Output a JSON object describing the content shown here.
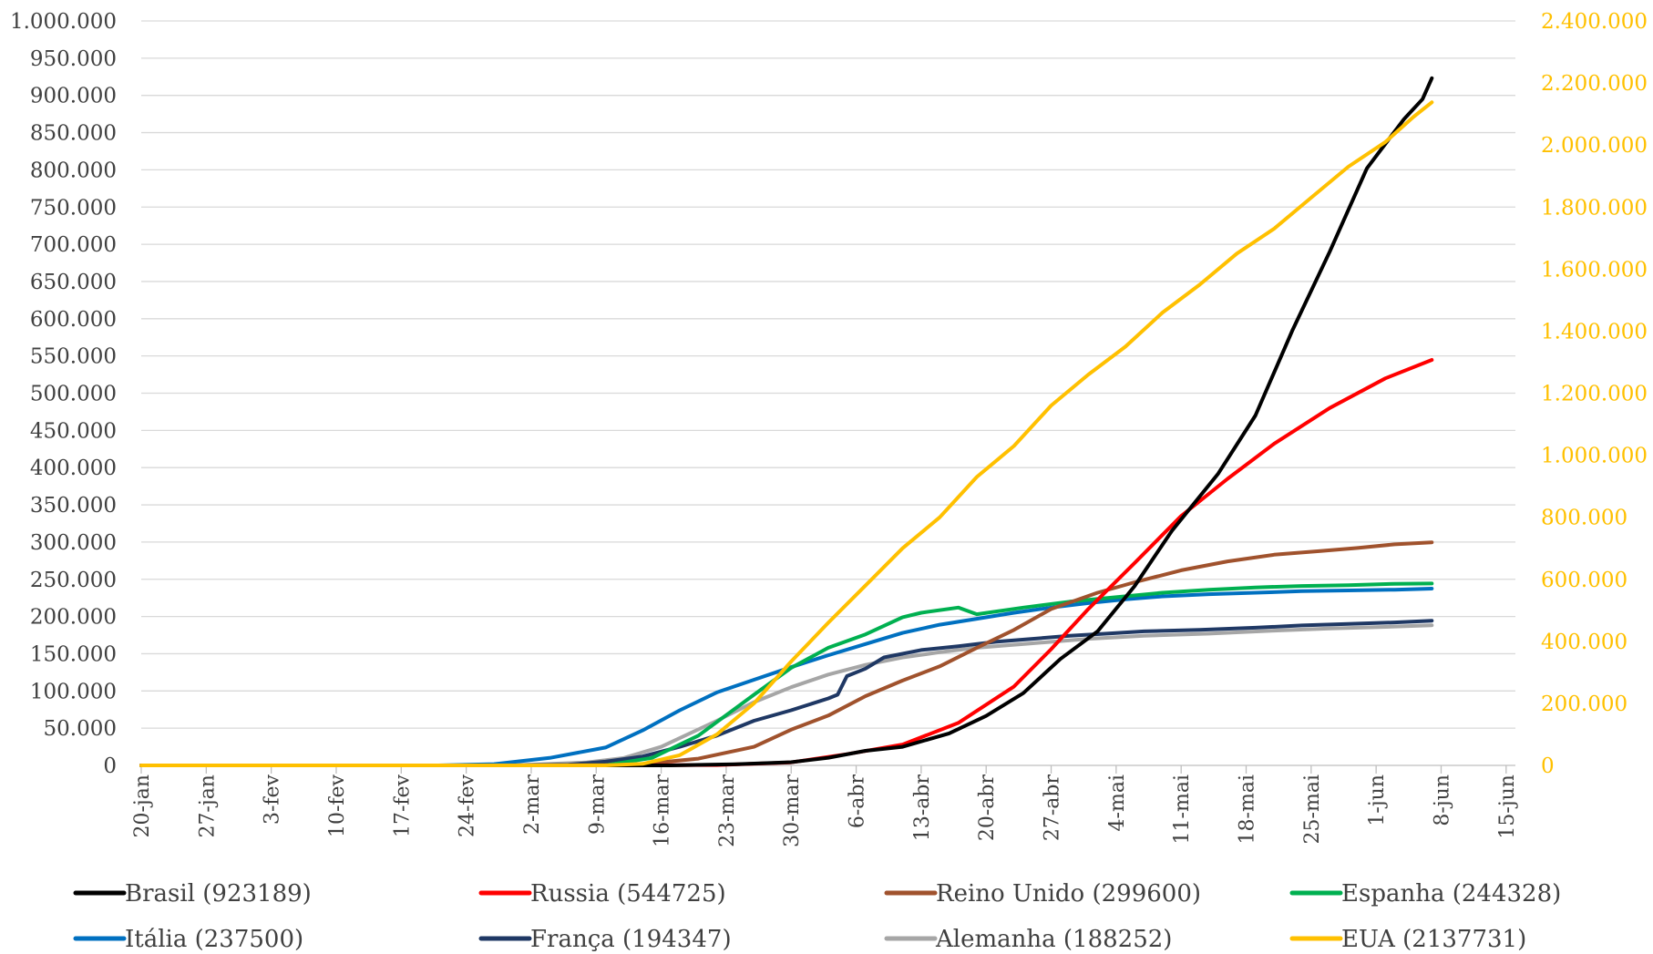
{
  "chart_data": {
    "type": "line",
    "title": "",
    "xlabel": "",
    "ylabel": "",
    "y_left": {
      "ylim": [
        0,
        1000000
      ],
      "step": 50000,
      "tick_labels": [
        "0",
        "50.000",
        "100.000",
        "150.000",
        "200.000",
        "250.000",
        "300.000",
        "350.000",
        "400.000",
        "450.000",
        "500.000",
        "550.000",
        "600.000",
        "650.000",
        "700.000",
        "750.000",
        "800.000",
        "850.000",
        "900.000",
        "950.000",
        "1.000.000"
      ]
    },
    "y_right": {
      "ylim": [
        0,
        2400000
      ],
      "step": 200000,
      "color": "#ffc000",
      "tick_labels": [
        "0",
        "200.000",
        "400.000",
        "600.000",
        "800.000",
        "1.000.000",
        "1.200.000",
        "1.400.000",
        "1.600.000",
        "1.800.000",
        "2.000.000",
        "2.200.000",
        "2.400.000"
      ]
    },
    "x_ticks": [
      "20-jan",
      "27-jan",
      "3-fev",
      "10-fev",
      "17-fev",
      "24-fev",
      "2-mar",
      "9-mar",
      "16-mar",
      "23-mar",
      "30-mar",
      "6-abr",
      "13-abr",
      "20-abr",
      "27-abr",
      "4-mai",
      "11-mai",
      "18-mai",
      "25-mai",
      "1-jun",
      "8-jun",
      "15-jun"
    ],
    "x_range_days": [
      0,
      148
    ],
    "grid": true,
    "legend_position": "bottom",
    "series": [
      {
        "name": "Brasil (923189)",
        "color": "#000000",
        "axis": "left",
        "points": [
          [
            0,
            0
          ],
          [
            36,
            0
          ],
          [
            45,
            1
          ],
          [
            57,
            30
          ],
          [
            64,
            1500
          ],
          [
            70,
            4300
          ],
          [
            74,
            10300
          ],
          [
            78,
            19600
          ],
          [
            82,
            25000
          ],
          [
            87,
            43000
          ],
          [
            91,
            66500
          ],
          [
            95,
            97100
          ],
          [
            99,
            143000
          ],
          [
            103,
            180000
          ],
          [
            107,
            241000
          ],
          [
            111,
            315000
          ],
          [
            116,
            392000
          ],
          [
            120,
            470000
          ],
          [
            124,
            585000
          ],
          [
            128,
            690000
          ],
          [
            132,
            802000
          ],
          [
            136,
            868000
          ],
          [
            138,
            895000
          ],
          [
            139,
            923189
          ]
        ]
      },
      {
        "name": "Russia (544725)",
        "color": "#ff0000",
        "axis": "left",
        "points": [
          [
            0,
            0
          ],
          [
            50,
            0
          ],
          [
            62,
            500
          ],
          [
            70,
            4000
          ],
          [
            76,
            15000
          ],
          [
            82,
            28000
          ],
          [
            88,
            57000
          ],
          [
            94,
            106000
          ],
          [
            98,
            156000
          ],
          [
            102,
            210000
          ],
          [
            107,
            272000
          ],
          [
            112,
            335000
          ],
          [
            117,
            385000
          ],
          [
            122,
            432000
          ],
          [
            128,
            480000
          ],
          [
            134,
            520000
          ],
          [
            139,
            544725
          ]
        ]
      },
      {
        "name": "Reino Unido (299600)",
        "color": "#a0522d",
        "axis": "left",
        "points": [
          [
            0,
            0
          ],
          [
            40,
            0
          ],
          [
            53,
            500
          ],
          [
            60,
            9000
          ],
          [
            66,
            25000
          ],
          [
            70,
            48000
          ],
          [
            74,
            67000
          ],
          [
            78,
            93000
          ],
          [
            82,
            114000
          ],
          [
            86,
            133000
          ],
          [
            90,
            158000
          ],
          [
            94,
            182000
          ],
          [
            98,
            210000
          ],
          [
            103,
            232000
          ],
          [
            107,
            246000
          ],
          [
            112,
            262000
          ],
          [
            117,
            274000
          ],
          [
            122,
            283000
          ],
          [
            127,
            288000
          ],
          [
            131,
            292000
          ],
          [
            135,
            297000
          ],
          [
            139,
            299600
          ]
        ]
      },
      {
        "name": "Espanha (244328)",
        "color": "#00b050",
        "axis": "left",
        "points": [
          [
            0,
            0
          ],
          [
            40,
            0
          ],
          [
            50,
            200
          ],
          [
            55,
            10000
          ],
          [
            60,
            40000
          ],
          [
            66,
            95000
          ],
          [
            70,
            131000
          ],
          [
            74,
            158000
          ],
          [
            78,
            176000
          ],
          [
            82,
            199000
          ],
          [
            84,
            205000
          ],
          [
            88,
            212000
          ],
          [
            90,
            203000
          ],
          [
            95,
            212000
          ],
          [
            100,
            220000
          ],
          [
            105,
            226000
          ],
          [
            110,
            232000
          ],
          [
            115,
            236000
          ],
          [
            120,
            239000
          ],
          [
            125,
            241000
          ],
          [
            130,
            242000
          ],
          [
            135,
            244000
          ],
          [
            139,
            244328
          ]
        ]
      },
      {
        "name": "Itália (237500)",
        "color": "#0070c0",
        "axis": "left",
        "points": [
          [
            0,
            0
          ],
          [
            32,
            0
          ],
          [
            38,
            1700
          ],
          [
            44,
            10000
          ],
          [
            50,
            24000
          ],
          [
            54,
            47000
          ],
          [
            58,
            74000
          ],
          [
            62,
            98000
          ],
          [
            66,
            115000
          ],
          [
            70,
            132000
          ],
          [
            74,
            148000
          ],
          [
            78,
            163000
          ],
          [
            82,
            178000
          ],
          [
            86,
            189000
          ],
          [
            90,
            197000
          ],
          [
            94,
            205000
          ],
          [
            98,
            212000
          ],
          [
            102,
            218000
          ],
          [
            106,
            223000
          ],
          [
            110,
            227000
          ],
          [
            115,
            230000
          ],
          [
            120,
            232000
          ],
          [
            125,
            234000
          ],
          [
            130,
            235000
          ],
          [
            135,
            236000
          ],
          [
            139,
            237500
          ]
        ]
      },
      {
        "name": "França (194347)",
        "color": "#1f3864",
        "axis": "left",
        "points": [
          [
            0,
            0
          ],
          [
            40,
            0
          ],
          [
            46,
            1000
          ],
          [
            50,
            5000
          ],
          [
            54,
            12000
          ],
          [
            58,
            25000
          ],
          [
            62,
            40000
          ],
          [
            66,
            60000
          ],
          [
            70,
            74000
          ],
          [
            74,
            90000
          ],
          [
            75,
            95000
          ],
          [
            76,
            120000
          ],
          [
            78,
            130000
          ],
          [
            80,
            145000
          ],
          [
            84,
            155000
          ],
          [
            88,
            160000
          ],
          [
            92,
            166000
          ],
          [
            96,
            170000
          ],
          [
            100,
            174000
          ],
          [
            104,
            177000
          ],
          [
            108,
            180000
          ],
          [
            114,
            182000
          ],
          [
            120,
            185000
          ],
          [
            125,
            188000
          ],
          [
            130,
            190000
          ],
          [
            135,
            192000
          ],
          [
            139,
            194347
          ]
        ]
      },
      {
        "name": "Alemanha (188252)",
        "color": "#a6a6a6",
        "axis": "left",
        "points": [
          [
            0,
            0
          ],
          [
            40,
            0
          ],
          [
            48,
            4000
          ],
          [
            52,
            10000
          ],
          [
            56,
            25000
          ],
          [
            62,
            60000
          ],
          [
            66,
            85000
          ],
          [
            70,
            105000
          ],
          [
            74,
            122000
          ],
          [
            78,
            135000
          ],
          [
            82,
            145000
          ],
          [
            86,
            152000
          ],
          [
            90,
            158000
          ],
          [
            96,
            164000
          ],
          [
            102,
            170000
          ],
          [
            108,
            174000
          ],
          [
            115,
            177000
          ],
          [
            122,
            181000
          ],
          [
            128,
            184000
          ],
          [
            134,
            186000
          ],
          [
            139,
            188252
          ]
        ]
      },
      {
        "name": "EUA (2137731)",
        "color": "#ffc000",
        "axis": "right",
        "points": [
          [
            0,
            0
          ],
          [
            50,
            0
          ],
          [
            54,
            5000
          ],
          [
            58,
            33000
          ],
          [
            62,
            100000
          ],
          [
            66,
            200000
          ],
          [
            70,
            335000
          ],
          [
            74,
            460000
          ],
          [
            78,
            580000
          ],
          [
            82,
            700000
          ],
          [
            86,
            800000
          ],
          [
            90,
            930000
          ],
          [
            94,
            1030000
          ],
          [
            98,
            1160000
          ],
          [
            102,
            1260000
          ],
          [
            106,
            1350000
          ],
          [
            110,
            1460000
          ],
          [
            114,
            1550000
          ],
          [
            118,
            1650000
          ],
          [
            122,
            1730000
          ],
          [
            126,
            1830000
          ],
          [
            130,
            1930000
          ],
          [
            134,
            2010000
          ],
          [
            137,
            2090000
          ],
          [
            139,
            2137731
          ]
        ]
      }
    ]
  }
}
